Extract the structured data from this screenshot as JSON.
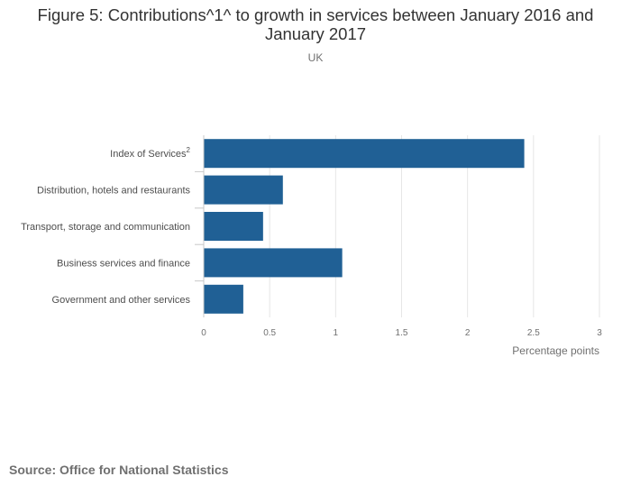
{
  "title": "Figure 5: Contributions^1^ to growth in services between January 2016 and January 2017",
  "subtitle": "UK",
  "source": "Source: Office for National Statistics",
  "colors": {
    "bar": "#206095",
    "grid": "#e6e6e6",
    "axis_text": "#707070",
    "label_text": "#4d4d4d"
  },
  "chart_data": {
    "type": "bar",
    "orientation": "horizontal",
    "categories": [
      {
        "label": "Index of Services",
        "superscript": "2"
      },
      {
        "label": "Distribution, hotels and restaurants"
      },
      {
        "label": "Transport, storage and communication"
      },
      {
        "label": "Business services and finance"
      },
      {
        "label": "Government and other services"
      }
    ],
    "values": [
      2.43,
      0.6,
      0.45,
      1.05,
      0.3
    ],
    "xlabel": "Percentage points",
    "xlim": [
      0,
      3
    ],
    "xticks": [
      "0",
      "0.5",
      "1",
      "1.5",
      "2",
      "2.5",
      "3"
    ],
    "grid": true,
    "legend": "none"
  }
}
